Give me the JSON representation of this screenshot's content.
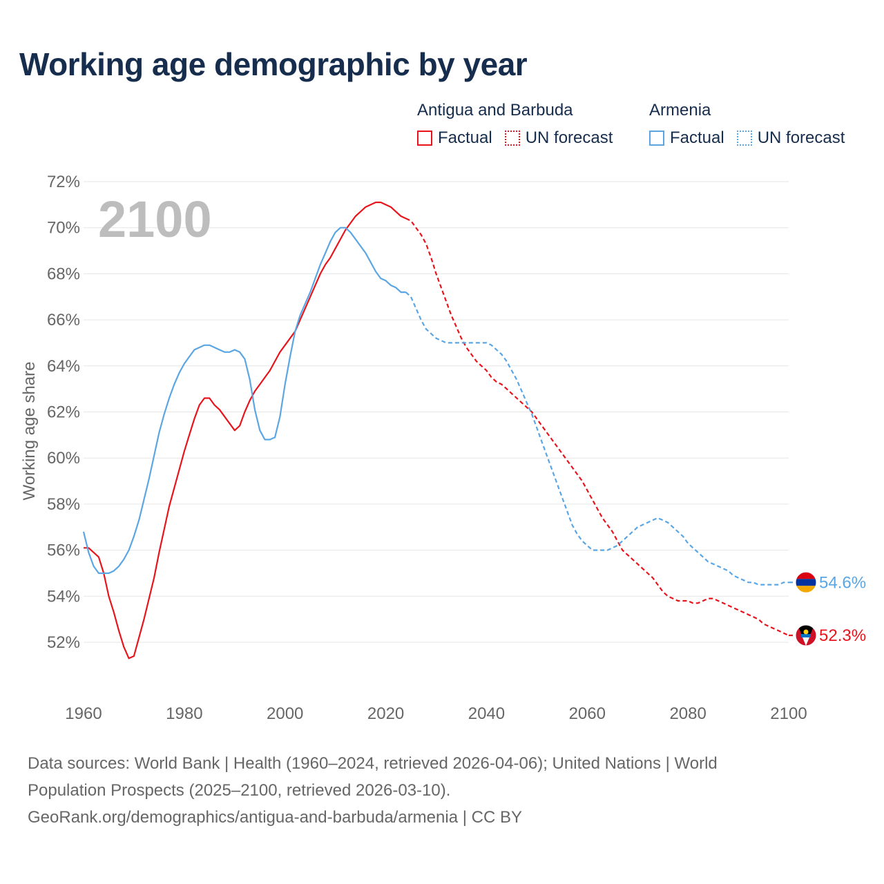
{
  "title": "Working age demographic by year",
  "legend": [
    {
      "country": "Antigua and Barbuda",
      "factual": "Factual",
      "forecast": "UN forecast",
      "color": "#e8141c"
    },
    {
      "country": "Armenia",
      "factual": "Factual",
      "forecast": "UN forecast",
      "color": "#5aa6e4"
    }
  ],
  "source": {
    "line1": "Data sources: World Bank | Health (1960–2024, retrieved 2026-04-06); United Nations | World",
    "line2": "Population Prospects (2025–2100, retrieved 2026-03-10).",
    "line3": "GeoRank.org/demographics/antigua-and-barbuda/armenia | CC BY"
  },
  "chart_data": {
    "type": "line",
    "title": "Working age demographic by year",
    "xlabel": "",
    "ylabel": "Working age share",
    "year_watermark": "2100",
    "xlim": [
      1960,
      2100
    ],
    "ylim": [
      50,
      72
    ],
    "x_ticks": [
      "1960",
      "1980",
      "2000",
      "2020",
      "2040",
      "2060",
      "2080",
      "2100"
    ],
    "x_tick_values": [
      1960,
      1980,
      2000,
      2020,
      2040,
      2060,
      2080,
      2100
    ],
    "y_ticks": [
      "52%",
      "54%",
      "56%",
      "58%",
      "60%",
      "62%",
      "64%",
      "66%",
      "68%",
      "70%",
      "72%"
    ],
    "y_tick_values": [
      52,
      54,
      56,
      58,
      60,
      62,
      64,
      66,
      68,
      70,
      72
    ],
    "grid": true,
    "forecast_start": 2024,
    "series": [
      {
        "name": "Antigua and Barbuda",
        "color": "#e8141c",
        "end_label": "52.3%",
        "points": [
          [
            1960,
            56.1
          ],
          [
            1961,
            56.1
          ],
          [
            1962,
            55.9
          ],
          [
            1963,
            55.7
          ],
          [
            1964,
            55.0
          ],
          [
            1965,
            54.0
          ],
          [
            1966,
            53.3
          ],
          [
            1967,
            52.5
          ],
          [
            1968,
            51.8
          ],
          [
            1969,
            51.3
          ],
          [
            1970,
            51.4
          ],
          [
            1971,
            52.2
          ],
          [
            1972,
            53.0
          ],
          [
            1973,
            53.9
          ],
          [
            1974,
            54.8
          ],
          [
            1975,
            55.9
          ],
          [
            1976,
            56.9
          ],
          [
            1977,
            57.9
          ],
          [
            1978,
            58.7
          ],
          [
            1979,
            59.5
          ],
          [
            1980,
            60.3
          ],
          [
            1981,
            61.0
          ],
          [
            1982,
            61.7
          ],
          [
            1983,
            62.3
          ],
          [
            1984,
            62.6
          ],
          [
            1985,
            62.6
          ],
          [
            1986,
            62.3
          ],
          [
            1987,
            62.1
          ],
          [
            1988,
            61.8
          ],
          [
            1989,
            61.5
          ],
          [
            1990,
            61.2
          ],
          [
            1991,
            61.4
          ],
          [
            1992,
            62.0
          ],
          [
            1993,
            62.5
          ],
          [
            1994,
            62.9
          ],
          [
            1995,
            63.2
          ],
          [
            1996,
            63.5
          ],
          [
            1997,
            63.8
          ],
          [
            1998,
            64.2
          ],
          [
            1999,
            64.6
          ],
          [
            2000,
            64.9
          ],
          [
            2001,
            65.2
          ],
          [
            2002,
            65.5
          ],
          [
            2003,
            66.0
          ],
          [
            2004,
            66.5
          ],
          [
            2005,
            67.0
          ],
          [
            2006,
            67.5
          ],
          [
            2007,
            68.0
          ],
          [
            2008,
            68.4
          ],
          [
            2009,
            68.7
          ],
          [
            2010,
            69.1
          ],
          [
            2011,
            69.5
          ],
          [
            2012,
            69.9
          ],
          [
            2013,
            70.2
          ],
          [
            2014,
            70.5
          ],
          [
            2015,
            70.7
          ],
          [
            2016,
            70.9
          ],
          [
            2017,
            71.0
          ],
          [
            2018,
            71.1
          ],
          [
            2019,
            71.1
          ],
          [
            2020,
            71.0
          ],
          [
            2021,
            70.9
          ],
          [
            2022,
            70.7
          ],
          [
            2023,
            70.5
          ],
          [
            2024,
            70.4
          ],
          [
            2025,
            70.3
          ],
          [
            2026,
            70.0
          ],
          [
            2027,
            69.7
          ],
          [
            2028,
            69.3
          ],
          [
            2029,
            68.7
          ],
          [
            2030,
            68.0
          ],
          [
            2031,
            67.4
          ],
          [
            2032,
            66.8
          ],
          [
            2033,
            66.2
          ],
          [
            2034,
            65.7
          ],
          [
            2035,
            65.2
          ],
          [
            2036,
            64.8
          ],
          [
            2037,
            64.5
          ],
          [
            2038,
            64.2
          ],
          [
            2039,
            64.0
          ],
          [
            2040,
            63.8
          ],
          [
            2041,
            63.5
          ],
          [
            2042,
            63.3
          ],
          [
            2043,
            63.2
          ],
          [
            2044,
            63.0
          ],
          [
            2045,
            62.8
          ],
          [
            2046,
            62.6
          ],
          [
            2047,
            62.4
          ],
          [
            2048,
            62.2
          ],
          [
            2049,
            62.0
          ],
          [
            2050,
            61.7
          ],
          [
            2051,
            61.4
          ],
          [
            2052,
            61.1
          ],
          [
            2053,
            60.8
          ],
          [
            2054,
            60.5
          ],
          [
            2055,
            60.2
          ],
          [
            2056,
            59.9
          ],
          [
            2057,
            59.6
          ],
          [
            2058,
            59.3
          ],
          [
            2059,
            59.0
          ],
          [
            2060,
            58.6
          ],
          [
            2061,
            58.2
          ],
          [
            2062,
            57.8
          ],
          [
            2063,
            57.4
          ],
          [
            2064,
            57.1
          ],
          [
            2065,
            56.8
          ],
          [
            2066,
            56.4
          ],
          [
            2067,
            56.0
          ],
          [
            2068,
            55.8
          ],
          [
            2069,
            55.6
          ],
          [
            2070,
            55.4
          ],
          [
            2071,
            55.2
          ],
          [
            2072,
            55.0
          ],
          [
            2073,
            54.8
          ],
          [
            2074,
            54.5
          ],
          [
            2075,
            54.2
          ],
          [
            2076,
            54.0
          ],
          [
            2077,
            53.9
          ],
          [
            2078,
            53.8
          ],
          [
            2079,
            53.8
          ],
          [
            2080,
            53.8
          ],
          [
            2081,
            53.7
          ],
          [
            2082,
            53.7
          ],
          [
            2083,
            53.8
          ],
          [
            2084,
            53.9
          ],
          [
            2085,
            53.9
          ],
          [
            2086,
            53.8
          ],
          [
            2087,
            53.7
          ],
          [
            2088,
            53.6
          ],
          [
            2089,
            53.5
          ],
          [
            2090,
            53.4
          ],
          [
            2091,
            53.3
          ],
          [
            2092,
            53.2
          ],
          [
            2093,
            53.1
          ],
          [
            2094,
            53.0
          ],
          [
            2095,
            52.8
          ],
          [
            2096,
            52.7
          ],
          [
            2097,
            52.6
          ],
          [
            2098,
            52.5
          ],
          [
            2099,
            52.4
          ],
          [
            2100,
            52.3
          ]
        ]
      },
      {
        "name": "Armenia",
        "color": "#5aa6e4",
        "end_label": "54.6%",
        "points": [
          [
            1960,
            56.8
          ],
          [
            1961,
            55.9
          ],
          [
            1962,
            55.3
          ],
          [
            1963,
            55.0
          ],
          [
            1964,
            55.0
          ],
          [
            1965,
            55.0
          ],
          [
            1966,
            55.1
          ],
          [
            1967,
            55.3
          ],
          [
            1968,
            55.6
          ],
          [
            1969,
            56.0
          ],
          [
            1970,
            56.6
          ],
          [
            1971,
            57.3
          ],
          [
            1972,
            58.2
          ],
          [
            1973,
            59.1
          ],
          [
            1974,
            60.1
          ],
          [
            1975,
            61.1
          ],
          [
            1976,
            61.9
          ],
          [
            1977,
            62.6
          ],
          [
            1978,
            63.2
          ],
          [
            1979,
            63.7
          ],
          [
            1980,
            64.1
          ],
          [
            1981,
            64.4
          ],
          [
            1982,
            64.7
          ],
          [
            1983,
            64.8
          ],
          [
            1984,
            64.9
          ],
          [
            1985,
            64.9
          ],
          [
            1986,
            64.8
          ],
          [
            1987,
            64.7
          ],
          [
            1988,
            64.6
          ],
          [
            1989,
            64.6
          ],
          [
            1990,
            64.7
          ],
          [
            1991,
            64.6
          ],
          [
            1992,
            64.3
          ],
          [
            1993,
            63.4
          ],
          [
            1994,
            62.1
          ],
          [
            1995,
            61.2
          ],
          [
            1996,
            60.8
          ],
          [
            1997,
            60.8
          ],
          [
            1998,
            60.9
          ],
          [
            1999,
            61.8
          ],
          [
            2000,
            63.2
          ],
          [
            2001,
            64.4
          ],
          [
            2002,
            65.5
          ],
          [
            2003,
            66.2
          ],
          [
            2004,
            66.7
          ],
          [
            2005,
            67.2
          ],
          [
            2006,
            67.8
          ],
          [
            2007,
            68.4
          ],
          [
            2008,
            68.9
          ],
          [
            2009,
            69.4
          ],
          [
            2010,
            69.8
          ],
          [
            2011,
            70.0
          ],
          [
            2012,
            70.0
          ],
          [
            2013,
            69.8
          ],
          [
            2014,
            69.5
          ],
          [
            2015,
            69.2
          ],
          [
            2016,
            68.9
          ],
          [
            2017,
            68.5
          ],
          [
            2018,
            68.1
          ],
          [
            2019,
            67.8
          ],
          [
            2020,
            67.7
          ],
          [
            2021,
            67.5
          ],
          [
            2022,
            67.4
          ],
          [
            2023,
            67.2
          ],
          [
            2024,
            67.2
          ],
          [
            2025,
            67.0
          ],
          [
            2026,
            66.5
          ],
          [
            2027,
            66.0
          ],
          [
            2028,
            65.6
          ],
          [
            2029,
            65.4
          ],
          [
            2030,
            65.2
          ],
          [
            2031,
            65.1
          ],
          [
            2032,
            65.0
          ],
          [
            2033,
            65.0
          ],
          [
            2034,
            65.0
          ],
          [
            2035,
            65.0
          ],
          [
            2036,
            65.0
          ],
          [
            2037,
            65.0
          ],
          [
            2038,
            65.0
          ],
          [
            2039,
            65.0
          ],
          [
            2040,
            65.0
          ],
          [
            2041,
            64.9
          ],
          [
            2042,
            64.7
          ],
          [
            2043,
            64.5
          ],
          [
            2044,
            64.2
          ],
          [
            2045,
            63.8
          ],
          [
            2046,
            63.4
          ],
          [
            2047,
            62.9
          ],
          [
            2048,
            62.4
          ],
          [
            2049,
            61.9
          ],
          [
            2050,
            61.3
          ],
          [
            2051,
            60.7
          ],
          [
            2052,
            60.1
          ],
          [
            2053,
            59.5
          ],
          [
            2054,
            58.9
          ],
          [
            2055,
            58.3
          ],
          [
            2056,
            57.7
          ],
          [
            2057,
            57.1
          ],
          [
            2058,
            56.7
          ],
          [
            2059,
            56.4
          ],
          [
            2060,
            56.2
          ],
          [
            2061,
            56.0
          ],
          [
            2062,
            56.0
          ],
          [
            2063,
            56.0
          ],
          [
            2064,
            56.0
          ],
          [
            2065,
            56.1
          ],
          [
            2066,
            56.2
          ],
          [
            2067,
            56.4
          ],
          [
            2068,
            56.6
          ],
          [
            2069,
            56.8
          ],
          [
            2070,
            57.0
          ],
          [
            2071,
            57.1
          ],
          [
            2072,
            57.2
          ],
          [
            2073,
            57.3
          ],
          [
            2074,
            57.4
          ],
          [
            2075,
            57.3
          ],
          [
            2076,
            57.2
          ],
          [
            2077,
            57.0
          ],
          [
            2078,
            56.8
          ],
          [
            2079,
            56.6
          ],
          [
            2080,
            56.3
          ],
          [
            2081,
            56.1
          ],
          [
            2082,
            55.9
          ],
          [
            2083,
            55.7
          ],
          [
            2084,
            55.5
          ],
          [
            2085,
            55.4
          ],
          [
            2086,
            55.3
          ],
          [
            2087,
            55.2
          ],
          [
            2088,
            55.1
          ],
          [
            2089,
            54.9
          ],
          [
            2090,
            54.8
          ],
          [
            2091,
            54.7
          ],
          [
            2092,
            54.6
          ],
          [
            2093,
            54.6
          ],
          [
            2094,
            54.5
          ],
          [
            2095,
            54.5
          ],
          [
            2096,
            54.5
          ],
          [
            2097,
            54.5
          ],
          [
            2098,
            54.5
          ],
          [
            2099,
            54.6
          ],
          [
            2100,
            54.6
          ]
        ]
      }
    ]
  }
}
